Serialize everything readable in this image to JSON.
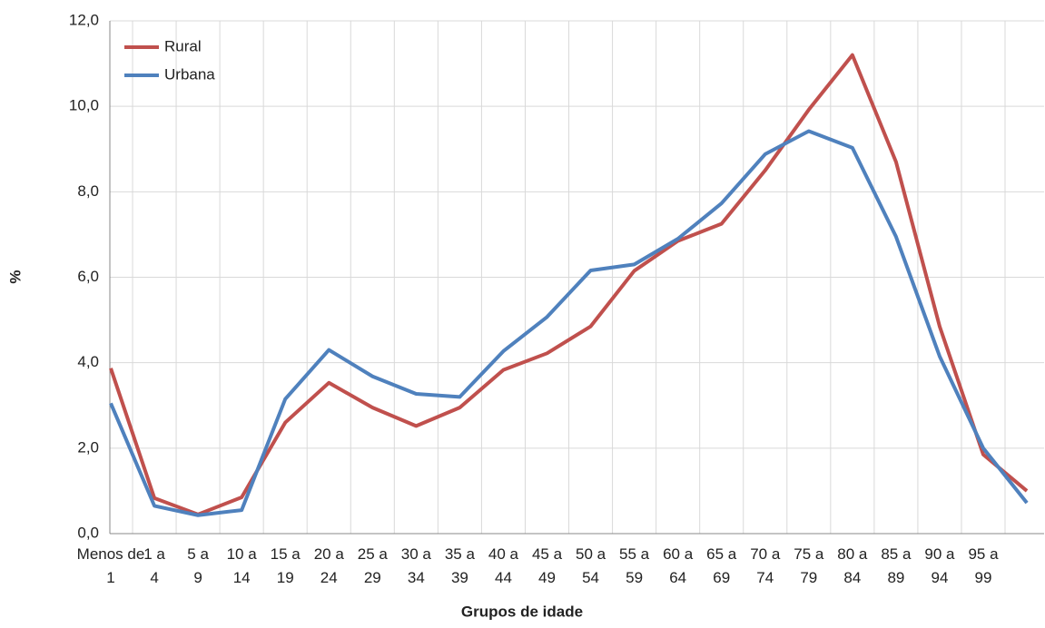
{
  "chart_data": {
    "type": "line",
    "x_label": "Grupos de idade",
    "y_label": "%",
    "categories": [
      "Menos de 1",
      "1 a 4",
      "5 a 9",
      "10 a 14",
      "15 a 19",
      "20 a 24",
      "25 a 29",
      "30 a 34",
      "35 a 39",
      "40 a 44",
      "45 a 49",
      "50 a 54",
      "55 a 59",
      "60 a 64",
      "65 a 69",
      "70 a 74",
      "75 a 79",
      "80 a 84",
      "85 a 89",
      "90 a 94",
      "95 a 99",
      null
    ],
    "series": [
      {
        "name": "Rural",
        "color": "#c0504d",
        "values": [
          3.87,
          0.83,
          0.45,
          0.85,
          2.6,
          3.53,
          2.95,
          2.52,
          2.95,
          3.83,
          4.22,
          4.85,
          6.15,
          6.85,
          7.25,
          8.5,
          9.92,
          11.2,
          8.7,
          4.85,
          1.85,
          1.0
        ]
      },
      {
        "name": "Urbana",
        "color": "#4f81bd",
        "values": [
          3.05,
          0.65,
          0.43,
          0.55,
          3.15,
          4.3,
          3.68,
          3.27,
          3.2,
          4.27,
          5.07,
          6.16,
          6.3,
          6.9,
          7.73,
          8.88,
          9.42,
          9.03,
          6.95,
          4.15,
          2.0,
          0.72
        ]
      }
    ],
    "ylim": [
      0,
      12
    ],
    "yticks": [
      {
        "value": 0,
        "label": "0,0"
      },
      {
        "value": 2,
        "label": "2,0"
      },
      {
        "value": 4,
        "label": "4,0"
      },
      {
        "value": 6,
        "label": "6,0"
      },
      {
        "value": 8,
        "label": "8,0"
      },
      {
        "value": 10,
        "label": "10,0"
      },
      {
        "value": 12,
        "label": "12,0"
      }
    ],
    "grid": true,
    "legend_position": "upper-left"
  }
}
